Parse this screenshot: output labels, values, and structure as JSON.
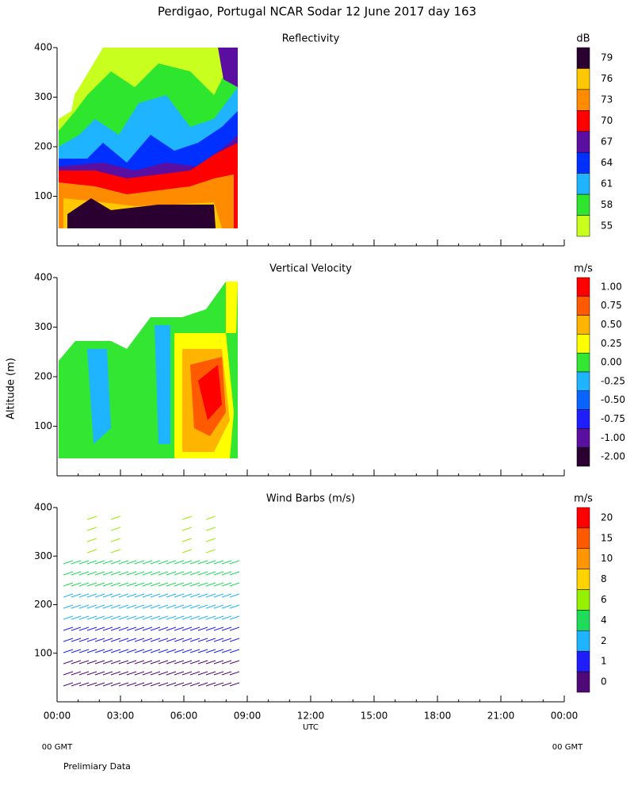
{
  "title": "Perdigao, Portugal  NCAR Sodar  12 June 2017  day 163",
  "y_label": "Altitude (m)",
  "x_label": "UTC",
  "xlim": [
    0,
    24
  ],
  "xticks": [
    {
      "value": 0,
      "label": "00:00"
    },
    {
      "value": 3,
      "label": "03:00"
    },
    {
      "value": 6,
      "label": "06:00"
    },
    {
      "value": 9,
      "label": "09:00"
    },
    {
      "value": 12,
      "label": "12:00"
    },
    {
      "value": 15,
      "label": "15:00"
    },
    {
      "value": 18,
      "label": "18:00"
    },
    {
      "value": 21,
      "label": "21:00"
    },
    {
      "value": 24,
      "label": "00:00"
    }
  ],
  "gmt_left": "00 GMT",
  "gmt_right": "00 GMT",
  "footer": "Prelimiary Data",
  "panels": [
    {
      "title": "Reflectivity",
      "unit": "dB",
      "ylim": [
        0,
        400
      ],
      "yticks": [
        100,
        200,
        300,
        400
      ],
      "colorbar": [
        {
          "label": "79",
          "color": "#2a0030"
        },
        {
          "label": "76",
          "color": "#ffc800"
        },
        {
          "label": "73",
          "color": "#ff8c00"
        },
        {
          "label": "70",
          "color": "#ff0000"
        },
        {
          "label": "67",
          "color": "#5a0fa0"
        },
        {
          "label": "64",
          "color": "#0030ff"
        },
        {
          "label": "61",
          "color": "#1eb4ff"
        },
        {
          "label": "58",
          "color": "#2ee62e"
        },
        {
          "label": "55",
          "color": "#c8ff1e"
        }
      ]
    },
    {
      "title": "Vertical Velocity",
      "unit": "m/s",
      "ylim": [
        0,
        400
      ],
      "yticks": [
        100,
        200,
        300,
        400
      ],
      "colorbar": [
        {
          "label": "1.00",
          "color": "#ff0000"
        },
        {
          "label": "0.75",
          "color": "#ff5a00"
        },
        {
          "label": "0.50",
          "color": "#ffb400"
        },
        {
          "label": "0.25",
          "color": "#ffff00"
        },
        {
          "label": "0.00",
          "color": "#32e632"
        },
        {
          "label": "-0.25",
          "color": "#1eb4ff"
        },
        {
          "label": "-0.50",
          "color": "#0a64ff"
        },
        {
          "label": "-0.75",
          "color": "#1e1eff"
        },
        {
          "label": "-1.00",
          "color": "#5a0fa0"
        },
        {
          "label": "-2.00",
          "color": "#2a0030"
        }
      ]
    },
    {
      "title": "Wind Barbs (m/s)",
      "unit": "m/s",
      "ylim": [
        0,
        400
      ],
      "yticks": [
        100,
        200,
        300,
        400
      ],
      "colorbar": [
        {
          "label": "20",
          "color": "#ff0000"
        },
        {
          "label": "15",
          "color": "#ff5a00"
        },
        {
          "label": "10",
          "color": "#ff9600"
        },
        {
          "label": "8",
          "color": "#ffd200"
        },
        {
          "label": "6",
          "color": "#96f000"
        },
        {
          "label": "4",
          "color": "#1edc5a"
        },
        {
          "label": "2",
          "color": "#1eb4ff"
        },
        {
          "label": "1",
          "color": "#1e1eff"
        },
        {
          "label": "0",
          "color": "#500a78"
        }
      ]
    }
  ]
}
